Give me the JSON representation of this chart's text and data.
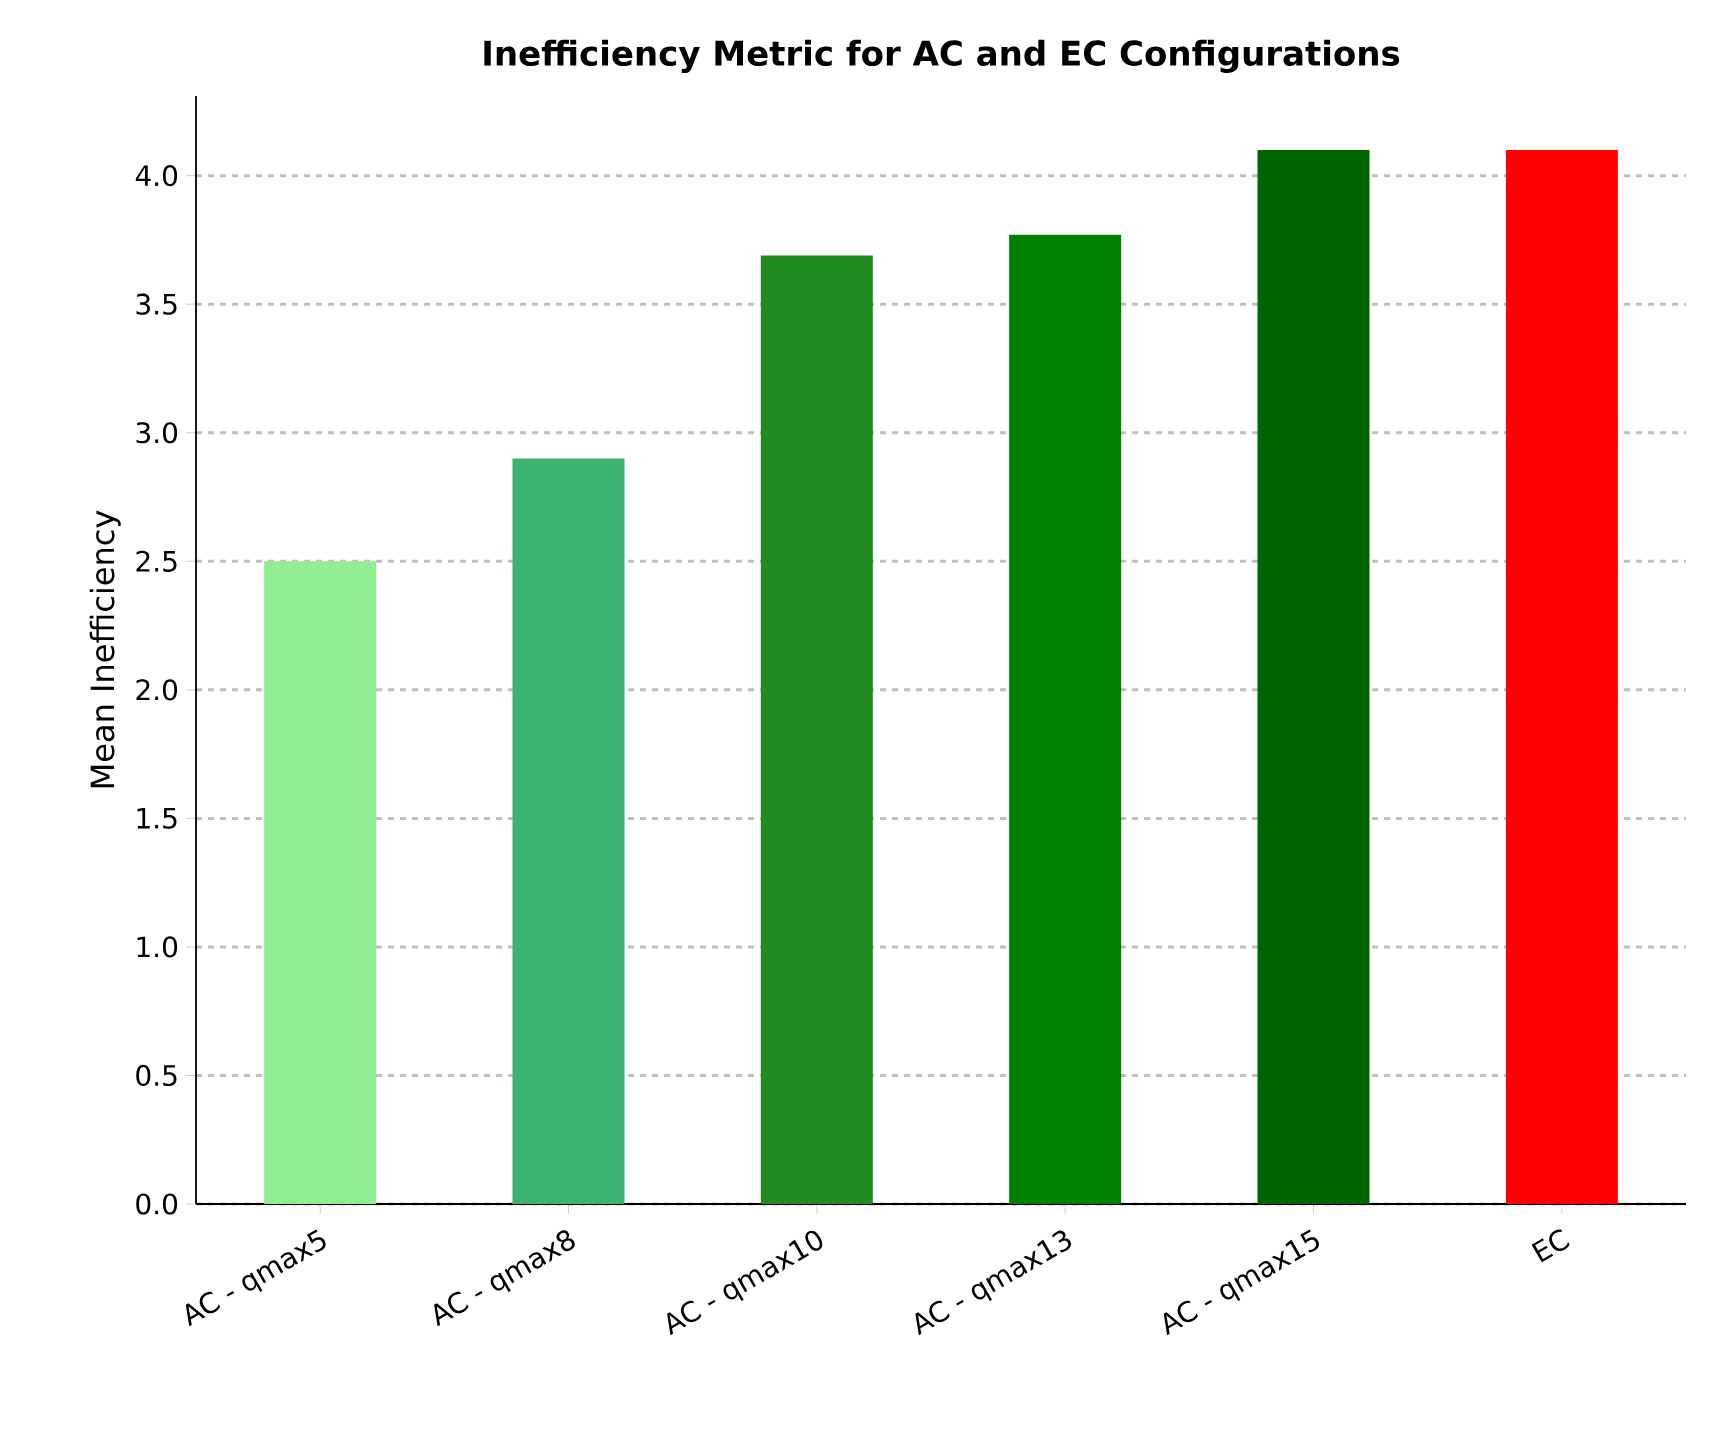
{
  "chart_data": {
    "type": "bar",
    "title": "Inefficiency Metric for AC and EC Configurations",
    "ylabel": "Mean Inefficiency",
    "categories": [
      "AC - qmax5",
      "AC - qmax8",
      "AC - qmax10",
      "AC - qmax13",
      "AC - qmax15",
      "EC"
    ],
    "values": [
      2.5,
      2.9,
      3.69,
      3.77,
      4.1,
      4.1
    ],
    "colors": [
      "#90ee90",
      "#3cb371",
      "#228b22",
      "#008000",
      "#006400",
      "#ff0000"
    ],
    "ylim": [
      0,
      4.31
    ],
    "yticks": [
      {
        "value": 0,
        "label": "0.0"
      },
      0.5,
      {
        "value": 1,
        "label": "1.0"
      },
      1.5,
      {
        "value": 2,
        "label": "2.0"
      },
      2.5,
      {
        "value": 3,
        "label": "3.0"
      },
      3.5,
      {
        "value": 4,
        "label": "4.0"
      }
    ],
    "grid": "y",
    "legend": false
  }
}
